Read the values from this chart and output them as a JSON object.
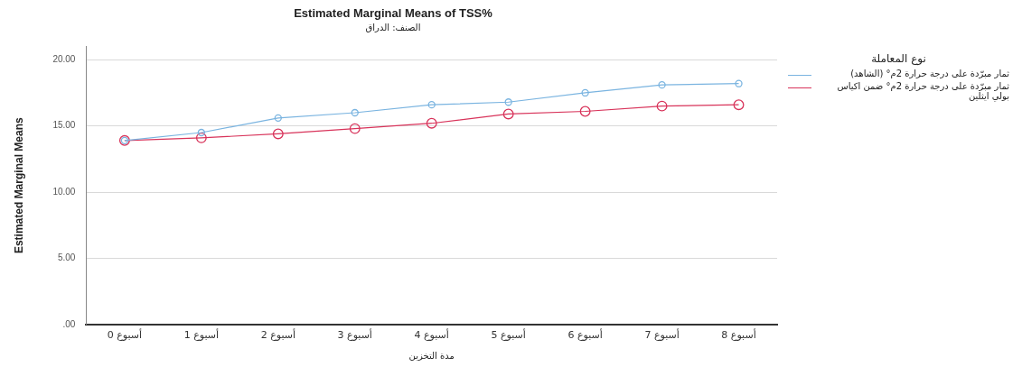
{
  "chart_data": {
    "type": "line",
    "title": "Estimated Marginal Means of TSS%",
    "subtitle": "الصنف: الدراق",
    "xlabel": "مدة التخزين",
    "ylabel": "Estimated Marginal Means",
    "legend_title": "نوع المعاملة",
    "categories": [
      "0 أسبوع",
      "1 أسبوع",
      "2 أسبوع",
      "3 أسبوع",
      "4 أسبوع",
      "5 أسبوع",
      "6 أسبوع",
      "7 أسبوع",
      "8 أسبوع"
    ],
    "series": [
      {
        "name": "ثمار مبرّدة على درجة حرارة 2م° (الشاهد)",
        "color": "#7ab4e0",
        "values": [
          13.9,
          14.5,
          15.6,
          16.0,
          16.6,
          16.8,
          17.5,
          18.1,
          18.2
        ]
      },
      {
        "name": "ثمار مبرّدة على درجة حرارة 2م° ضمن اكياس بولي ايثلين",
        "color": "#d8335a",
        "values": [
          13.9,
          14.1,
          14.4,
          14.8,
          15.2,
          15.9,
          16.1,
          16.5,
          16.6
        ]
      }
    ],
    "ylim": [
      0,
      21
    ],
    "yticks": [
      {
        "value": 0,
        "label": ".00"
      },
      {
        "value": 5,
        "label": "5.00"
      },
      {
        "value": 10,
        "label": "10.00"
      },
      {
        "value": 15,
        "label": "15.00"
      },
      {
        "value": 20,
        "label": "20.00"
      }
    ],
    "grid": "y",
    "legend": "top right",
    "marker": "circle",
    "line_style": "solid"
  }
}
